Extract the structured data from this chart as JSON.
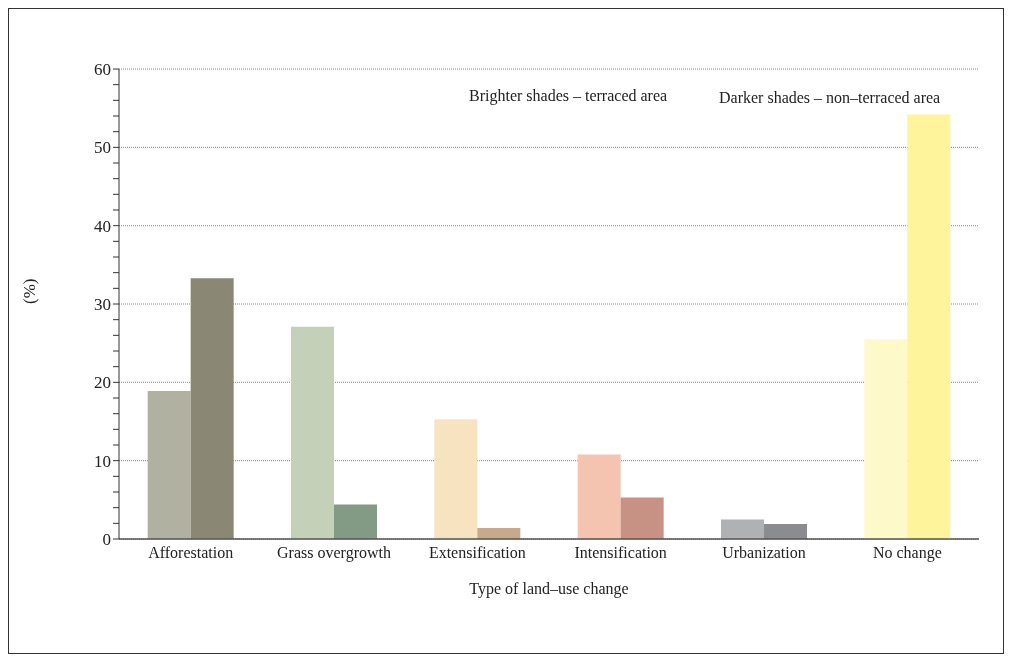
{
  "chart_data": {
    "type": "bar",
    "xlabel": "Type of land–use change",
    "ylabel": "(%)",
    "categories": [
      "Afforestation",
      "Grass overgrowth",
      "Extensification",
      "Intensification",
      "Urbanization",
      "No change"
    ],
    "series": [
      {
        "values": [
          18.9,
          27.1,
          15.3,
          10.8,
          2.5,
          25.5
        ],
        "colors": [
          "#b1b1a1",
          "#c4d0b7",
          "#f7e3c0",
          "#f4c4b0",
          "#b0b1b3",
          "#fef9c9"
        ]
      },
      {
        "values": [
          33.3,
          4.4,
          1.4,
          5.3,
          1.9,
          54.2
        ],
        "colors": [
          "#8a8775",
          "#839a85",
          "#c7a98b",
          "#c79283",
          "#8b8c8f",
          "#fdf49c"
        ]
      }
    ],
    "ylim": [
      0,
      60
    ],
    "yticks": [
      0,
      {
        "value": 2,
        "label": null
      },
      {
        "value": 4,
        "label": null
      },
      {
        "value": 6,
        "label": null
      },
      {
        "value": 8,
        "label": null
      },
      10,
      {
        "value": 12,
        "label": null
      },
      {
        "value": 14,
        "label": null
      },
      {
        "value": 16,
        "label": null
      },
      {
        "value": 18,
        "label": null
      },
      20,
      {
        "value": 22,
        "label": null
      },
      {
        "value": 24,
        "label": null
      },
      {
        "value": 26,
        "label": null
      },
      {
        "value": 28,
        "label": null
      },
      30,
      {
        "value": 32,
        "label": null
      },
      {
        "value": 34,
        "label": null
      },
      {
        "value": 36,
        "label": null
      },
      {
        "value": 38,
        "label": null
      },
      40,
      {
        "value": 42,
        "label": null
      },
      {
        "value": 44,
        "label": null
      },
      {
        "value": 46,
        "label": null
      },
      {
        "value": 48,
        "label": null
      },
      50,
      {
        "value": 52,
        "label": null
      },
      {
        "value": 54,
        "label": null
      },
      {
        "value": 56,
        "label": null
      },
      {
        "value": 58,
        "label": null
      },
      60
    ],
    "grid": "y",
    "legend": false,
    "annotations": [
      "Brighter shades – terraced area",
      "Darker shades – non–terraced area"
    ]
  }
}
